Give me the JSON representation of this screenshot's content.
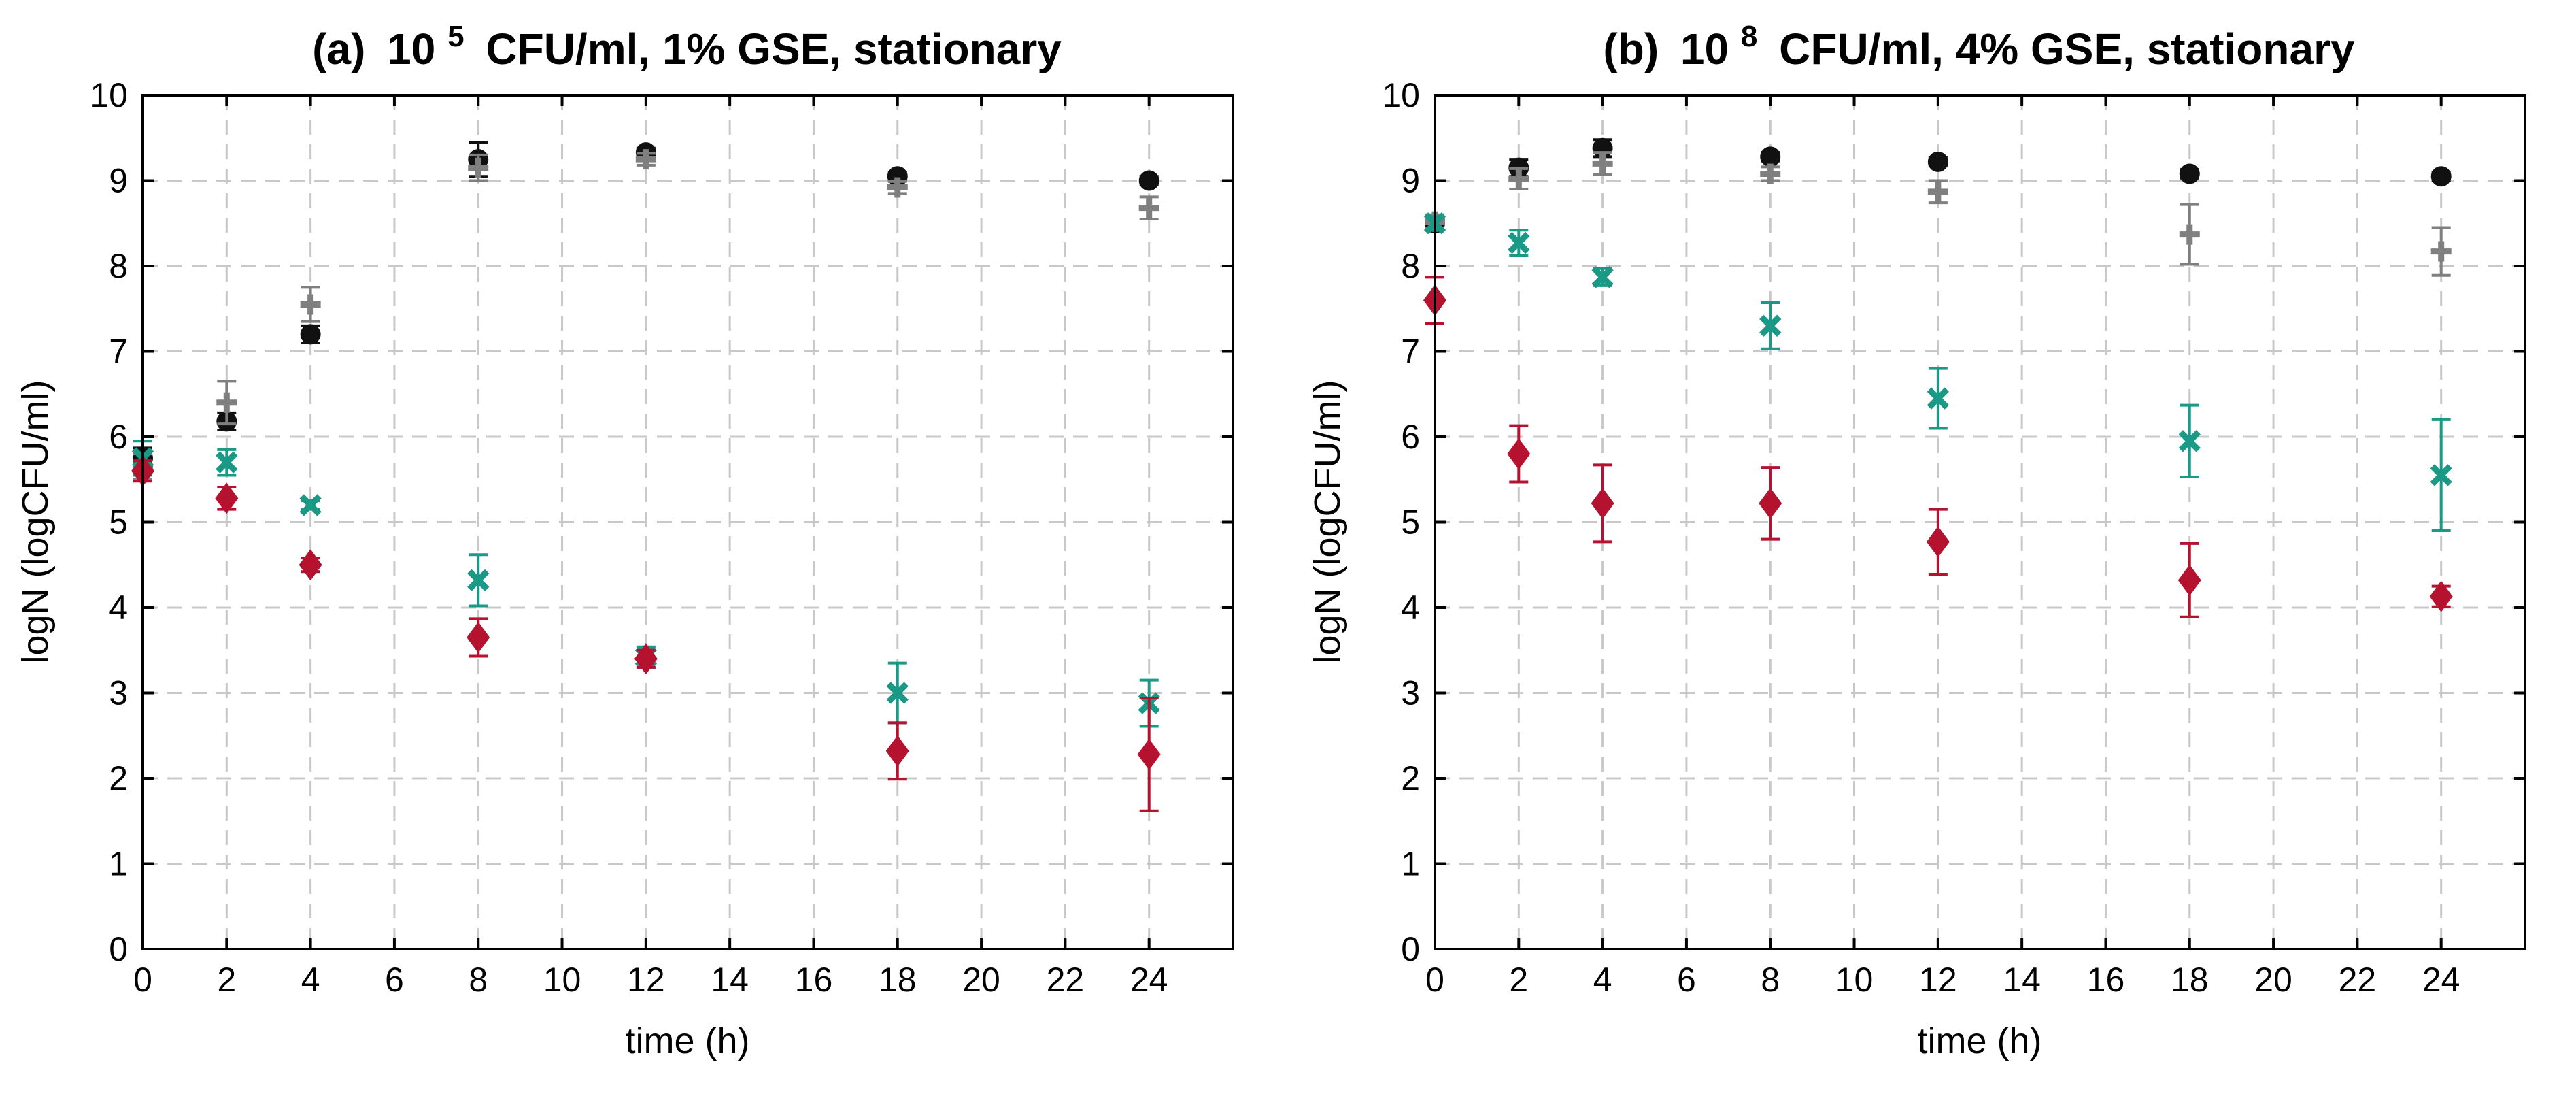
{
  "chart_data": [
    {
      "type": "scatter",
      "panel": "a",
      "title_prefix": "(a)",
      "title_base": "10",
      "title_exponent": "5",
      "title_rest": "CFU/ml, 1% GSE, stationary",
      "xlabel": "time (h)",
      "ylabel": "logN (logCFU/ml)",
      "xlim": [
        0,
        26
      ],
      "ylim": [
        0,
        10
      ],
      "xticks": [
        "0",
        "2",
        "4",
        "6",
        "8",
        "10",
        "12",
        "14",
        "16",
        "18",
        "20",
        "22",
        "24"
      ],
      "yticks": [
        "0",
        "1",
        "2",
        "3",
        "4",
        "5",
        "6",
        "7",
        "8",
        "9",
        "10"
      ],
      "grid": true,
      "series": [
        {
          "name": "black circles",
          "marker": "circle",
          "color": "#111111",
          "points": [
            {
              "x": 0,
              "y": 5.75,
              "err": 0.12
            },
            {
              "x": 2,
              "y": 6.18,
              "err": 0.1
            },
            {
              "x": 4,
              "y": 7.2,
              "err": 0.1
            },
            {
              "x": 8,
              "y": 9.25,
              "err": 0.2
            },
            {
              "x": 12,
              "y": 9.33,
              "err": 0.05
            },
            {
              "x": 18,
              "y": 9.05,
              "err": 0.05
            },
            {
              "x": 24,
              "y": 9.0,
              "err": 0.05
            }
          ]
        },
        {
          "name": "gray crosses",
          "marker": "plus",
          "color": "#7f7f7f",
          "points": [
            {
              "x": 0,
              "y": 5.65,
              "err": 0.15
            },
            {
              "x": 2,
              "y": 6.4,
              "err": 0.25
            },
            {
              "x": 4,
              "y": 7.55,
              "err": 0.2
            },
            {
              "x": 8,
              "y": 9.15,
              "err": 0.15
            },
            {
              "x": 12,
              "y": 9.25,
              "err": 0.07
            },
            {
              "x": 18,
              "y": 8.92,
              "err": 0.07
            },
            {
              "x": 24,
              "y": 8.68,
              "err": 0.13
            }
          ]
        },
        {
          "name": "teal x-marks",
          "marker": "x",
          "color": "#1a9a86",
          "points": [
            {
              "x": 0,
              "y": 5.75,
              "err": 0.2
            },
            {
              "x": 2,
              "y": 5.7,
              "err": 0.15
            },
            {
              "x": 4,
              "y": 5.2,
              "err": 0.05
            },
            {
              "x": 8,
              "y": 4.32,
              "err": 0.3
            },
            {
              "x": 12,
              "y": 3.42,
              "err": 0.12
            },
            {
              "x": 18,
              "y": 3.0,
              "err": 0.35
            },
            {
              "x": 24,
              "y": 2.88,
              "err": 0.27
            }
          ]
        },
        {
          "name": "red diamonds",
          "marker": "diamond",
          "color": "#b5122f",
          "points": [
            {
              "x": 0,
              "y": 5.6,
              "err": 0.12
            },
            {
              "x": 2,
              "y": 5.28,
              "err": 0.13
            },
            {
              "x": 4,
              "y": 4.5,
              "err": 0.08
            },
            {
              "x": 8,
              "y": 3.65,
              "err": 0.22
            },
            {
              "x": 12,
              "y": 3.4,
              "err": 0.1
            },
            {
              "x": 18,
              "y": 2.32,
              "err": 0.33
            },
            {
              "x": 24,
              "y": 2.28,
              "err": 0.66
            }
          ]
        }
      ]
    },
    {
      "type": "scatter",
      "panel": "b",
      "title_prefix": "(b)",
      "title_base": "10",
      "title_exponent": "8",
      "title_rest": "CFU/ml, 4% GSE, stationary",
      "xlabel": "time (h)",
      "ylabel": "logN (logCFU/ml)",
      "xlim": [
        0,
        26
      ],
      "ylim": [
        0,
        10
      ],
      "xticks": [
        "0",
        "2",
        "4",
        "6",
        "8",
        "10",
        "12",
        "14",
        "16",
        "18",
        "20",
        "22",
        "24"
      ],
      "yticks": [
        "0",
        "1",
        "2",
        "3",
        "4",
        "5",
        "6",
        "7",
        "8",
        "9",
        "10"
      ],
      "grid": true,
      "series": [
        {
          "name": "black circles",
          "marker": "circle",
          "color": "#111111",
          "points": [
            {
              "x": 0,
              "y": 8.5,
              "err": 0.08
            },
            {
              "x": 2,
              "y": 9.15,
              "err": 0.1
            },
            {
              "x": 4,
              "y": 9.38,
              "err": 0.1
            },
            {
              "x": 8,
              "y": 9.28,
              "err": 0.05
            },
            {
              "x": 12,
              "y": 9.22,
              "err": 0.05
            },
            {
              "x": 18,
              "y": 9.08,
              "err": 0.05
            },
            {
              "x": 24,
              "y": 9.05,
              "err": 0.05
            }
          ]
        },
        {
          "name": "gray crosses",
          "marker": "plus",
          "color": "#7f7f7f",
          "points": [
            {
              "x": 0,
              "y": 8.52,
              "err": 0.08
            },
            {
              "x": 2,
              "y": 9.02,
              "err": 0.12
            },
            {
              "x": 4,
              "y": 9.2,
              "err": 0.13
            },
            {
              "x": 8,
              "y": 9.08,
              "err": 0.08
            },
            {
              "x": 12,
              "y": 8.87,
              "err": 0.13
            },
            {
              "x": 18,
              "y": 8.37,
              "err": 0.35
            },
            {
              "x": 24,
              "y": 8.17,
              "err": 0.28
            }
          ]
        },
        {
          "name": "teal x-marks",
          "marker": "x",
          "color": "#1a9a86",
          "points": [
            {
              "x": 0,
              "y": 8.5,
              "err": 0.08
            },
            {
              "x": 2,
              "y": 8.27,
              "err": 0.15
            },
            {
              "x": 4,
              "y": 7.87,
              "err": 0.1
            },
            {
              "x": 8,
              "y": 7.3,
              "err": 0.27
            },
            {
              "x": 12,
              "y": 6.45,
              "err": 0.35
            },
            {
              "x": 18,
              "y": 5.95,
              "err": 0.42
            },
            {
              "x": 24,
              "y": 5.55,
              "err": 0.65
            }
          ]
        },
        {
          "name": "red diamonds",
          "marker": "diamond",
          "color": "#b5122f",
          "points": [
            {
              "x": 0,
              "y": 7.6,
              "err": 0.27
            },
            {
              "x": 2,
              "y": 5.8,
              "err": 0.33
            },
            {
              "x": 4,
              "y": 5.22,
              "err": 0.45
            },
            {
              "x": 8,
              "y": 5.22,
              "err": 0.42
            },
            {
              "x": 12,
              "y": 4.77,
              "err": 0.38
            },
            {
              "x": 18,
              "y": 4.32,
              "err": 0.43
            },
            {
              "x": 24,
              "y": 4.13,
              "err": 0.12
            }
          ]
        }
      ]
    }
  ]
}
